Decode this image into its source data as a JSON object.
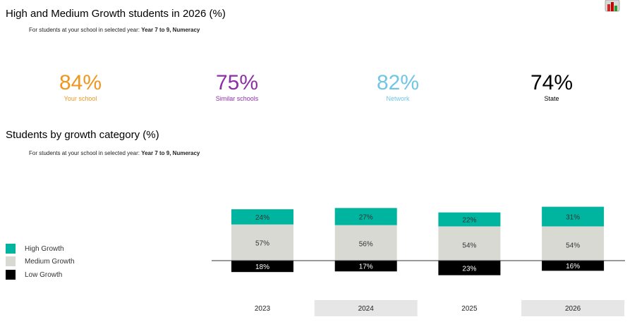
{
  "header": {
    "title": "High and Medium Growth students in 2026 (%)",
    "subtitle_prefix": "For students at your school in selected year: ",
    "subtitle_value": "Year 7 to 9, Numeracy"
  },
  "kpis": [
    {
      "value": "84%",
      "label": "Your school",
      "color": "#f0961e"
    },
    {
      "value": "75%",
      "label": "Similar schools",
      "color": "#8e2fa8"
    },
    {
      "value": "82%",
      "label": "Network",
      "color": "#72c5e5"
    },
    {
      "value": "74%",
      "label": "State",
      "color": "#000000"
    }
  ],
  "section2": {
    "title": "Students by growth category (%)",
    "subtitle_prefix": "For students at your school in selected year: ",
    "subtitle_value": "Year 7 to 9, Numeracy"
  },
  "legend": [
    {
      "label": "High Growth",
      "color": "#00b5a0"
    },
    {
      "label": "Medium Growth",
      "color": "#d9d9d4"
    },
    {
      "label": "Low Growth",
      "color": "#000000"
    }
  ],
  "chart_data": {
    "type": "bar",
    "stacked": "diverging",
    "categories": [
      "2023",
      "2024",
      "2025",
      "2026"
    ],
    "series": [
      {
        "name": "High Growth",
        "values": [
          24,
          27,
          22,
          31
        ],
        "color": "#00b5a0"
      },
      {
        "name": "Medium Growth",
        "values": [
          57,
          56,
          54,
          54
        ],
        "color": "#d9d9d4"
      },
      {
        "name": "Low Growth",
        "values": [
          18,
          17,
          23,
          16
        ],
        "color": "#000000"
      }
    ],
    "data_labels": true,
    "legend_position": "left"
  }
}
